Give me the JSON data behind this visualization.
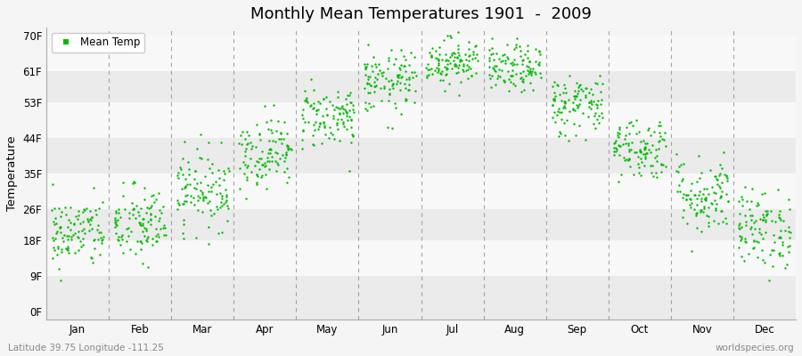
{
  "title": "Monthly Mean Temperatures 1901  -  2009",
  "ylabel": "Temperature",
  "yticks": [
    0,
    9,
    18,
    26,
    35,
    44,
    53,
    61,
    70
  ],
  "ytick_labels": [
    "0F",
    "9F",
    "18F",
    "26F",
    "35F",
    "44F",
    "53F",
    "61F",
    "70F"
  ],
  "month_labels": [
    "Jan",
    "Feb",
    "Mar",
    "Apr",
    "May",
    "Jun",
    "Jul",
    "Aug",
    "Sep",
    "Oct",
    "Nov",
    "Dec"
  ],
  "dot_color": "#00bb00",
  "dot_size": 3,
  "bg_color": "#f5f5f5",
  "band_colors": [
    "#ebebeb",
    "#f8f8f8"
  ],
  "legend_label": "Mean Temp",
  "footer_left": "Latitude 39.75 Longitude -111.25",
  "footer_right": "worldspecies.org",
  "dashed_line_color": "#999999",
  "n_years": 109,
  "monthly_means_f": [
    20.0,
    22.0,
    31.0,
    40.5,
    49.5,
    58.0,
    63.5,
    61.5,
    52.5,
    41.5,
    29.5,
    21.0
  ],
  "monthly_std_f": [
    4.5,
    5.0,
    5.0,
    4.5,
    4.0,
    4.0,
    3.0,
    3.0,
    4.0,
    4.0,
    5.0,
    5.0
  ]
}
